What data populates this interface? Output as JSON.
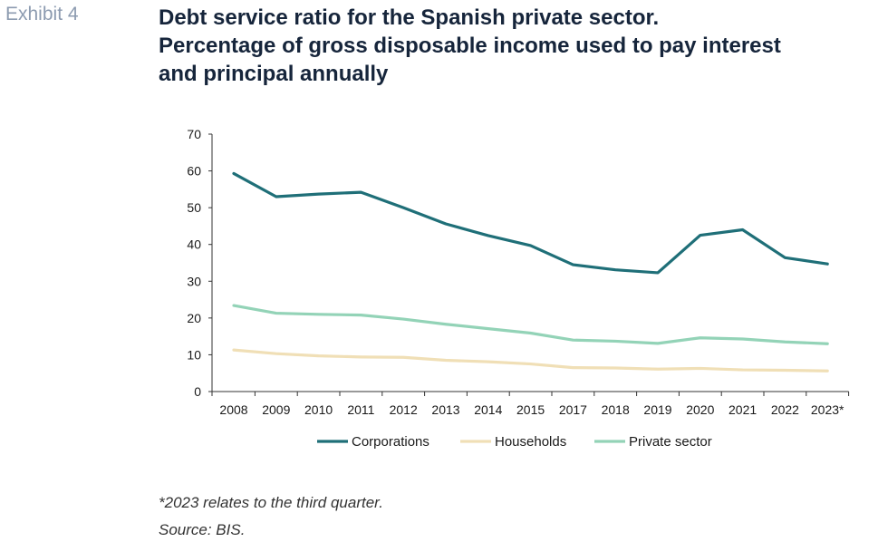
{
  "exhibit_label": "Exhibit 4",
  "title_lines": [
    "Debt service ratio for the Spanish private sector.",
    "Percentage of gross disposable income used to pay interest",
    "and principal annually"
  ],
  "footnote": "*2023 relates to the third quarter.",
  "source": "Source: BIS.",
  "chart_data": {
    "type": "line",
    "categories": [
      "2008",
      "2009",
      "2010",
      "2011",
      "2012",
      "2013",
      "2014",
      "2015",
      "2017",
      "2018",
      "2019",
      "2020",
      "2021",
      "2022",
      "2023*"
    ],
    "ylim": [
      0,
      70
    ],
    "yticks": [
      0,
      10,
      20,
      30,
      40,
      50,
      60,
      70
    ],
    "grid": false,
    "legend_position": "bottom",
    "series": [
      {
        "name": "Corporations",
        "color": "#1f6f78",
        "values": [
          59.3,
          53.0,
          53.7,
          54.2,
          50.0,
          45.6,
          42.4,
          39.7,
          34.5,
          33.1,
          32.3,
          42.5,
          44.0,
          36.4,
          34.7
        ]
      },
      {
        "name": "Households",
        "color": "#f0dfb6",
        "values": [
          11.3,
          10.3,
          9.7,
          9.4,
          9.3,
          8.5,
          8.1,
          7.5,
          6.5,
          6.4,
          6.1,
          6.3,
          5.9,
          5.8,
          5.6
        ]
      },
      {
        "name": "Private sector",
        "color": "#93d3b7",
        "values": [
          23.4,
          21.3,
          21.0,
          20.8,
          19.7,
          18.3,
          17.1,
          15.9,
          14.0,
          13.7,
          13.1,
          14.6,
          14.3,
          13.5,
          13.0
        ]
      }
    ]
  }
}
